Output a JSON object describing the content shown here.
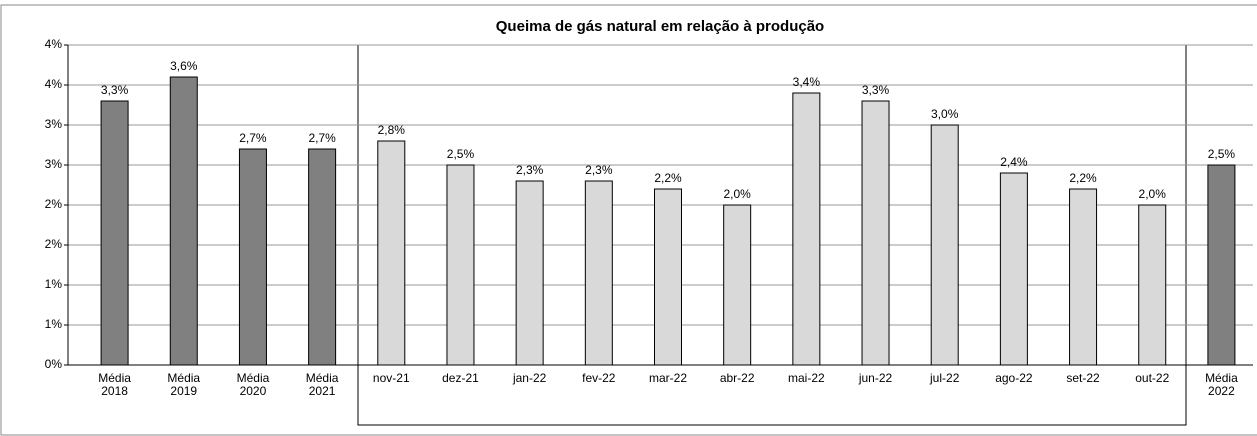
{
  "chart_data": {
    "type": "bar",
    "title": "Queima de gás natural  em relação à produção",
    "categories": [
      "Média 2018",
      "Média 2019",
      "Média 2020",
      "Média 2021",
      "nov-21",
      "dez-21",
      "jan-22",
      "fev-22",
      "mar-22",
      "abr-22",
      "mai-22",
      "jun-22",
      "jul-22",
      "ago-22",
      "set-22",
      "out-22",
      "Média 2022"
    ],
    "values": [
      3.3,
      3.6,
      2.7,
      2.7,
      2.8,
      2.5,
      2.3,
      2.3,
      2.2,
      2.0,
      3.4,
      3.3,
      3.0,
      2.4,
      2.2,
      2.0,
      2.5
    ],
    "value_labels": [
      "3,3%",
      "3,6%",
      "2,7%",
      "2,7%",
      "2,8%",
      "2,5%",
      "2,3%",
      "2,3%",
      "2,2%",
      "2,0%",
      "3,4%",
      "3,3%",
      "3,0%",
      "2,4%",
      "2,2%",
      "2,0%",
      "2,5%"
    ],
    "colors": [
      "#808080",
      "#808080",
      "#808080",
      "#808080",
      "#d9d9d9",
      "#d9d9d9",
      "#d9d9d9",
      "#d9d9d9",
      "#d9d9d9",
      "#d9d9d9",
      "#d9d9d9",
      "#d9d9d9",
      "#d9d9d9",
      "#d9d9d9",
      "#d9d9d9",
      "#d9d9d9",
      "#808080"
    ],
    "ylim": [
      0,
      4
    ],
    "yticks": [
      {
        "value": 0,
        "label": "0%"
      },
      {
        "value": 0.5,
        "label": "1%"
      },
      {
        "value": 1,
        "label": "1%"
      },
      {
        "value": 1.5,
        "label": "2%"
      },
      {
        "value": 2,
        "label": "2%"
      },
      {
        "value": 2.5,
        "label": "3%"
      },
      {
        "value": 3,
        "label": "3%"
      },
      {
        "value": 3.5,
        "label": "4%"
      },
      {
        "value": 4,
        "label": "4%"
      }
    ],
    "grid": true
  }
}
